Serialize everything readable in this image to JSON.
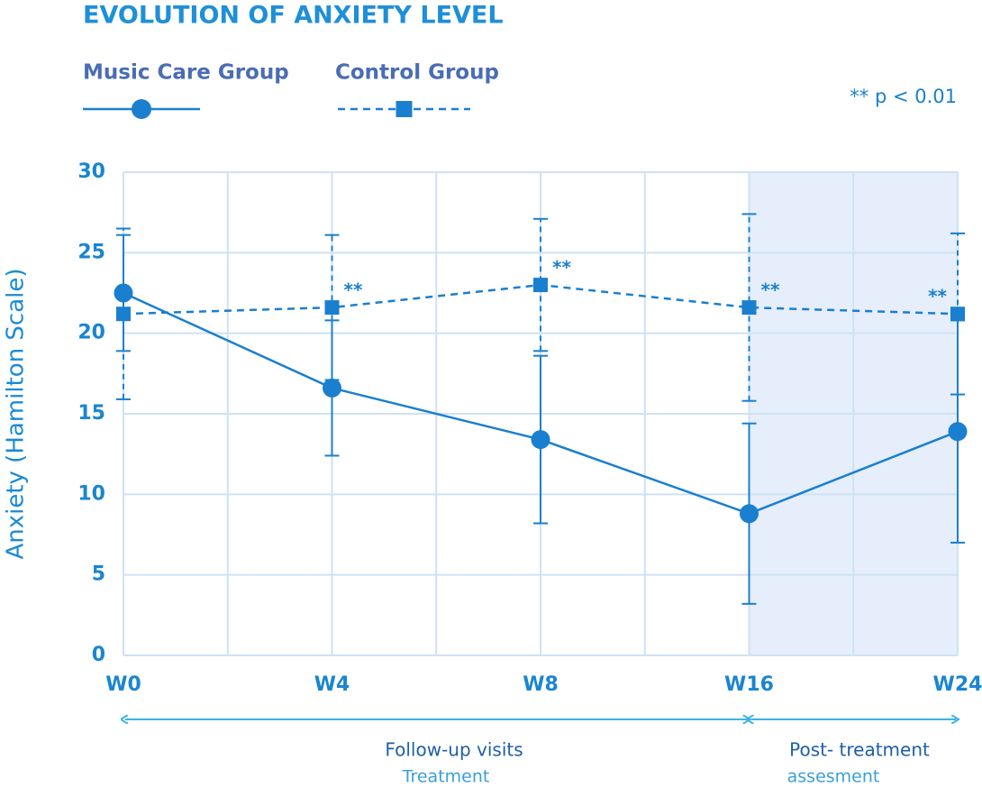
{
  "chart_data": {
    "type": "line",
    "title": "EVOLUTION OF ANXIETY LEVEL",
    "y_label": "Anxiety (Hamilton Scale)",
    "significance_note": "** p < 0.01",
    "categories": [
      "W0",
      "W4",
      "W8",
      "W16",
      "W24"
    ],
    "series": [
      {
        "name": "Music Care Group",
        "color": "#1a7fcf",
        "marker": "circle",
        "dashed": false,
        "values": [
          22.5,
          16.6,
          13.4,
          8.8,
          13.9
        ],
        "errors": [
          3.6,
          4.2,
          5.2,
          5.6,
          6.9
        ]
      },
      {
        "name": "Control Group",
        "color": "#1a7fcf",
        "marker": "square",
        "dashed": true,
        "values": [
          21.2,
          21.6,
          23.0,
          21.6,
          21.2
        ],
        "errors": [
          5.3,
          4.5,
          4.1,
          5.8,
          5.0
        ],
        "significance_labels": [
          null,
          "**",
          "**",
          "**",
          "**"
        ]
      }
    ],
    "ylim": [
      0,
      30
    ],
    "yticks": [
      0,
      5,
      10,
      15,
      20,
      25,
      30
    ],
    "grid": true,
    "phases": [
      {
        "label": "Follow-up visits",
        "sublabel": "Treatment"
      },
      {
        "label": "Post- treatment",
        "sublabel": "assesment"
      }
    ]
  }
}
